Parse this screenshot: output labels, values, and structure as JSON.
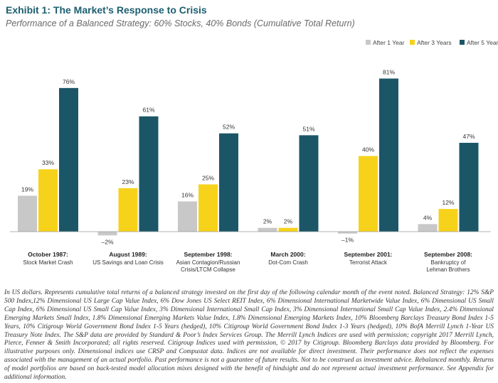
{
  "header": {
    "title": "Exhibit 1: The Market’s Response to Crisis",
    "subtitle": "Performance of a Balanced Strategy: 60% Stocks, 40% Bonds (Cumulative Total Return)"
  },
  "chart_data": {
    "type": "bar",
    "title": "Exhibit 1: The Market’s Response to Crisis",
    "subtitle": "Performance of a Balanced Strategy: 60% Stocks, 40% Bonds (Cumulative Total Return)",
    "categories": [
      {
        "title": "October 1987:",
        "sub": [
          "Stock Market Crash"
        ]
      },
      {
        "title": "August 1989:",
        "sub": [
          "US Savings and Loan Crisis"
        ]
      },
      {
        "title": "September 1998:",
        "sub": [
          "Asian Contagion/Russian",
          "Crisis/LTCM Collapse"
        ]
      },
      {
        "title": "March 2000:",
        "sub": [
          "Dot-Com Crash"
        ]
      },
      {
        "title": "September 2001:",
        "sub": [
          "Terrorist Attack"
        ]
      },
      {
        "title": "September 2008:",
        "sub": [
          "Bankruptcy of",
          "Lehman Brothers"
        ]
      }
    ],
    "series": [
      {
        "name": "After 1 Year",
        "color": "#c8c8c8",
        "values": [
          19,
          -2,
          16,
          2,
          -1,
          4
        ],
        "labels": [
          "19%",
          "–2%",
          "16%",
          "2%",
          "–1%",
          "4%"
        ]
      },
      {
        "name": "After 3 Years",
        "color": "#f7d21a",
        "values": [
          33,
          23,
          25,
          2,
          40,
          12
        ],
        "labels": [
          "33%",
          "23%",
          "25%",
          "2%",
          "40%",
          "12%"
        ]
      },
      {
        "name": "After 5 Years",
        "color": "#1b5667",
        "values": [
          76,
          61,
          52,
          51,
          81,
          47
        ],
        "labels": [
          "76%",
          "61%",
          "52%",
          "51%",
          "81%",
          "47%"
        ]
      }
    ],
    "legend_position": "top-right",
    "grid": false,
    "ylim": [
      -3,
      85
    ]
  },
  "footnote": "In US dollars. Represents cumulative total returns of a balanced strategy invested on the first day of the following calendar month of the event noted. Balanced Strategy: 12% S&P 500 Index,12% Dimensional US Large Cap Value Index, 6% Dow Jones US Select REIT Index, 6% Dimensional International Marketwide Value Index, 6% Dimensional US Small Cap Index, 6% Dimensional US Small Cap Value Index, 3% Dimensional International Small Cap Index, 3% Dimensional International Small Cap Value Index, 2.4% Dimensional Emerging Markets Small Index, 1.8% Dimensional Emerging Markets Value Index, 1.8% Dimensional Emerging Markets Index, 10% Bloomberg Barclays Treasury Bond Index 1-5 Years, 10% Citigroup World Government Bond Index 1-5 Years (hedged), 10% Citigroup World Government Bond Index 1-3 Years (hedged), 10% BofA Merrill Lynch 1-Year US Treasury Note Index. The S&P data are provided by Standard & Poor’s Index Services Group. The Merrill Lynch Indices are used with permission; copyright 2017 Merrill Lynch, Pierce, Fenner & Smith Incorporated; all rights reserved. Citigroup Indices used with permission, © 2017 by Citigroup. Bloomberg Barclays data provided by Bloomberg. For illustrative purposes only. Dimensional indices use CRSP and Compustat data. Indices are not available for direct investment. Their performance does not reflect the expenses associated with the management of an actual portfolio. Past performance is not a guarantee of future results. Not to be construed as investment advice. Rebalanced monthly. Returns of model portfolios are based on back-tested model allocation mixes designed with the benefit of hindsight and do not represent actual investment performance. See Appendix for additional information."
}
